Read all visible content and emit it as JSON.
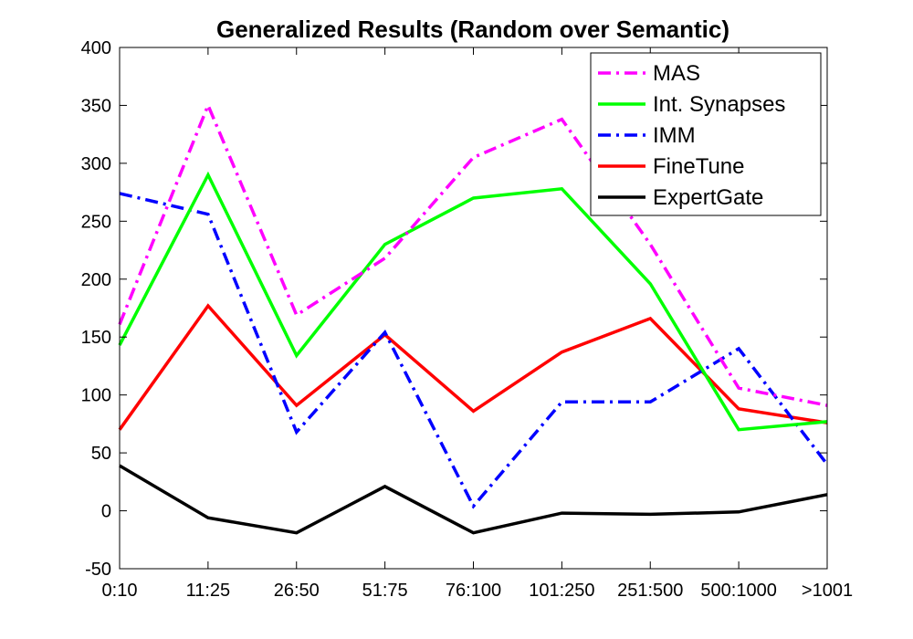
{
  "chart_data": {
    "type": "line",
    "title": "Generalized Results (Random over Semantic)",
    "xlabel": "",
    "ylabel": "",
    "categories": [
      "0:10",
      "11:25",
      "26:50",
      "51:75",
      "76:100",
      "101:250",
      "251:500",
      "500:1000",
      ">1001"
    ],
    "ylim": [
      -50,
      400
    ],
    "yticks": [
      -50,
      0,
      50,
      100,
      150,
      200,
      250,
      300,
      350,
      400
    ],
    "grid": false,
    "legend_position": "top-right",
    "series": [
      {
        "name": "MAS",
        "color": "#ff00ff",
        "style": "dashdot",
        "values": [
          161,
          350,
          169,
          218,
          305,
          338,
          230,
          106,
          91
        ]
      },
      {
        "name": "Int. Synapses",
        "color": "#00ff00",
        "style": "solid",
        "values": [
          143,
          290,
          134,
          230,
          270,
          278,
          196,
          70,
          77
        ]
      },
      {
        "name": "IMM",
        "color": "#0000ff",
        "style": "dashdot",
        "values": [
          274,
          256,
          68,
          154,
          4,
          94,
          94,
          140,
          40
        ]
      },
      {
        "name": "FineTune",
        "color": "#ff0000",
        "style": "solid",
        "values": [
          70,
          177,
          91,
          152,
          86,
          137,
          166,
          88,
          76
        ]
      },
      {
        "name": "ExpertGate",
        "color": "#000000",
        "style": "solid",
        "values": [
          39,
          -6,
          -19,
          21,
          -19,
          -2,
          -3,
          -1,
          14
        ]
      }
    ]
  }
}
